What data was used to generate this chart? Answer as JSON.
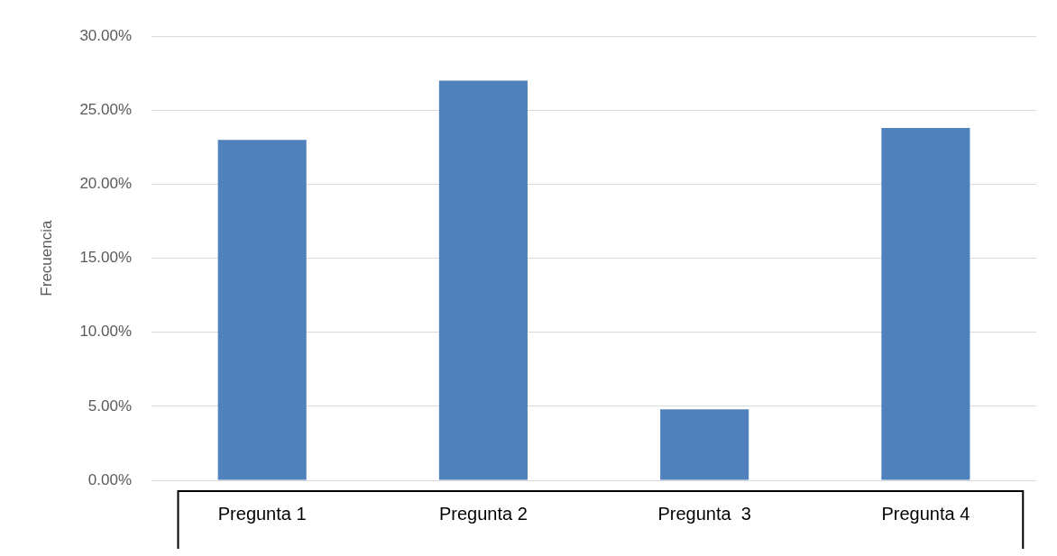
{
  "chart_data": {
    "type": "bar",
    "ylabel": "Frecuencia",
    "categories": [
      "Pregunta 1",
      "Pregunta 2",
      "Pregunta  3",
      "Pregunta 4"
    ],
    "values": [
      23,
      27,
      4.8,
      23.8
    ],
    "color": "#4f81bd",
    "ylim": [
      0,
      30
    ],
    "yticks": [
      {
        "value": 0,
        "label": "0.00%"
      },
      {
        "value": 5,
        "label": "5.00%"
      },
      {
        "value": 10,
        "label": "10.00%"
      },
      {
        "value": 15,
        "label": "15.00%"
      },
      {
        "value": 20,
        "label": "20.00%"
      },
      {
        "value": 25,
        "label": "25.00%"
      },
      {
        "value": 30,
        "label": "30.00%"
      }
    ],
    "grid": "y",
    "legend": false
  }
}
